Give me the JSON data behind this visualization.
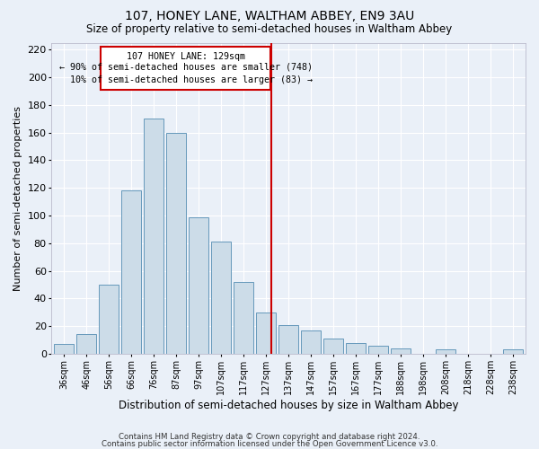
{
  "title": "107, HONEY LANE, WALTHAM ABBEY, EN9 3AU",
  "subtitle": "Size of property relative to semi-detached houses in Waltham Abbey",
  "xlabel": "Distribution of semi-detached houses by size in Waltham Abbey",
  "ylabel": "Number of semi-detached properties",
  "categories": [
    "36sqm",
    "46sqm",
    "56sqm",
    "66sqm",
    "76sqm",
    "87sqm",
    "97sqm",
    "107sqm",
    "117sqm",
    "127sqm",
    "137sqm",
    "147sqm",
    "157sqm",
    "167sqm",
    "177sqm",
    "188sqm",
    "198sqm",
    "208sqm",
    "218sqm",
    "228sqm",
    "238sqm"
  ],
  "values": [
    7,
    14,
    50,
    118,
    170,
    160,
    99,
    81,
    52,
    30,
    21,
    17,
    11,
    8,
    6,
    4,
    0,
    3,
    0,
    0,
    3
  ],
  "bar_color": "#ccdce8",
  "bar_edge_color": "#6699bb",
  "vline_x_index": 9.25,
  "annotation_box_color": "#cc0000",
  "property_label": "107 HONEY LANE: 129sqm",
  "pct_smaller": 90,
  "n_smaller": 748,
  "pct_larger": 10,
  "n_larger": 83,
  "ylim": [
    0,
    225
  ],
  "yticks": [
    0,
    20,
    40,
    60,
    80,
    100,
    120,
    140,
    160,
    180,
    200,
    220
  ],
  "bg_color": "#eaf0f8",
  "grid_color": "#ffffff",
  "footer1": "Contains HM Land Registry data © Crown copyright and database right 2024.",
  "footer2": "Contains public sector information licensed under the Open Government Licence v3.0."
}
